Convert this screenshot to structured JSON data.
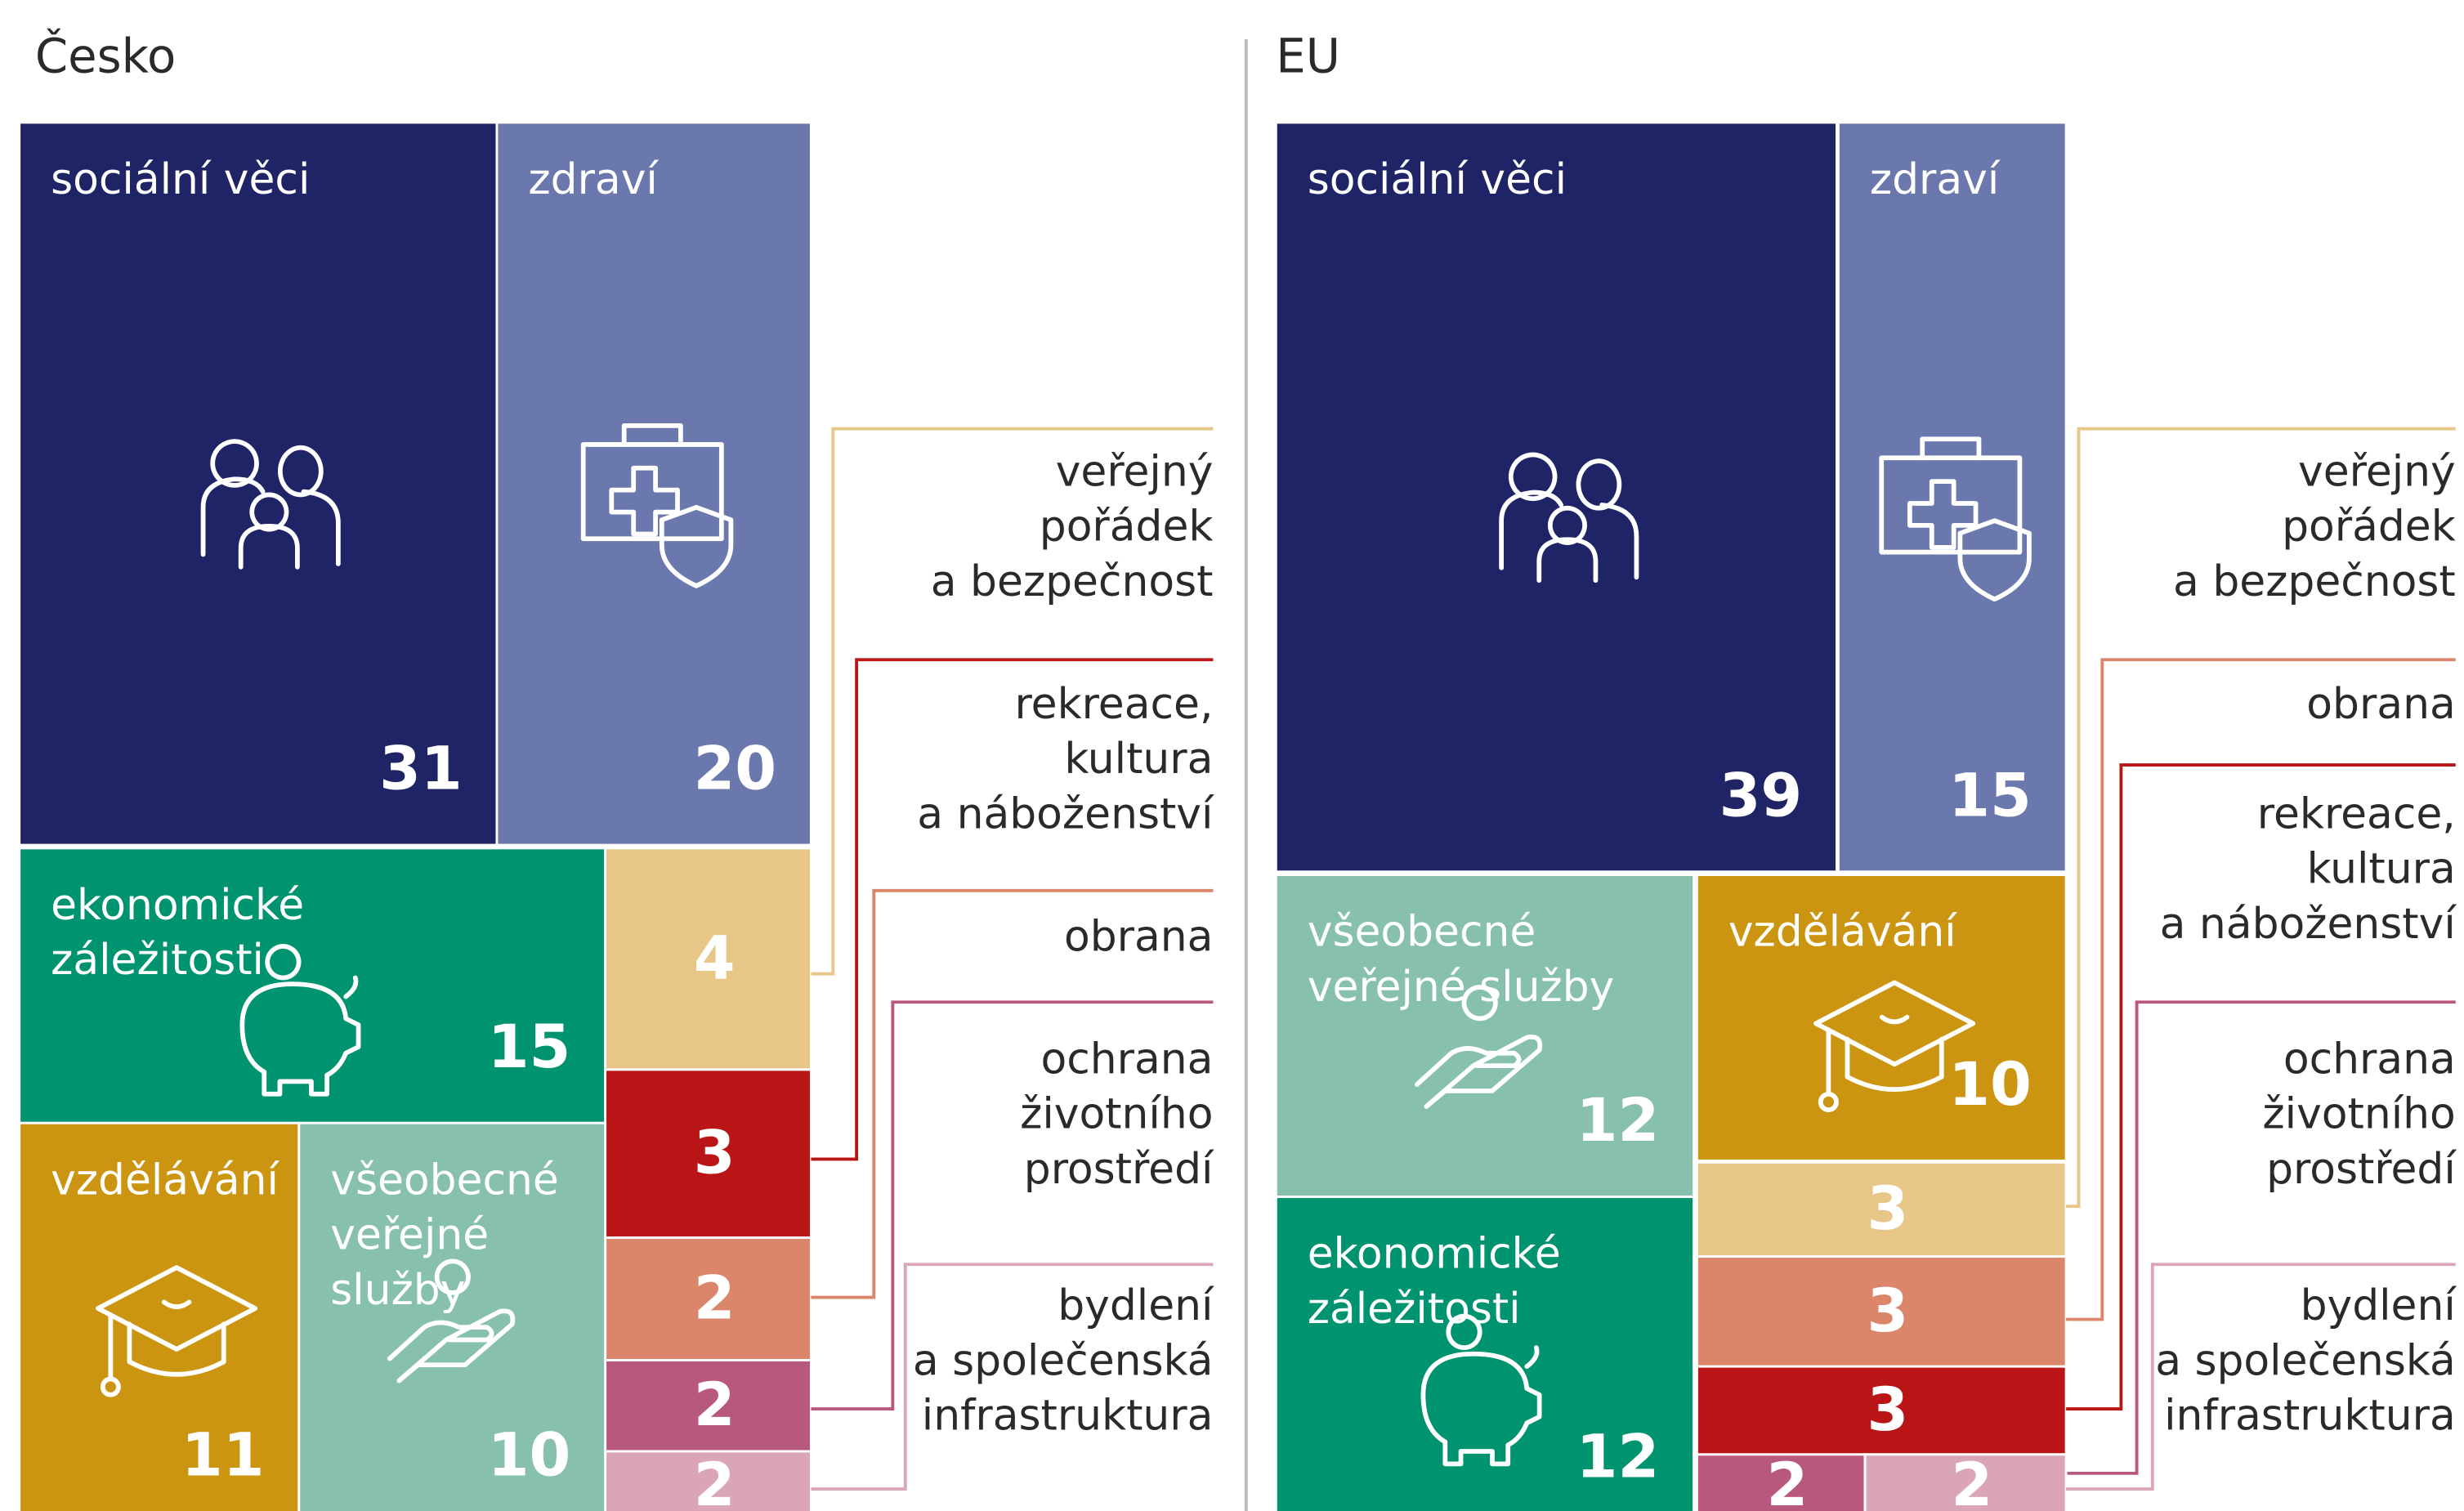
{
  "chart_data": [
    {
      "type": "treemap",
      "title": "Česko",
      "categories": [
        "sociální věci",
        "zdraví",
        "ekonomické\nzáležitosti",
        "veřejný\npořádek\na bezpečnost",
        "rekreace,\nkultura\na náboženství",
        "obrana",
        "ochrana\nživotního\nprostředí",
        "bydlení\na společenská\ninfrastruktura",
        "vzdělávání",
        "všeobecné\nveřejné\nslužby"
      ],
      "values": [
        31,
        20,
        15,
        4,
        3,
        2,
        2,
        2,
        11,
        10
      ],
      "colors": [
        "#1f2466",
        "#6b78ad",
        "#009370",
        "#e8c687",
        "#b91416",
        "#db866a",
        "#b9587e",
        "#daa5b8",
        "#cb9511",
        "#87c0ad"
      ]
    },
    {
      "type": "treemap",
      "title": "EU",
      "categories": [
        "sociální věci",
        "zdraví",
        "všeobecné\nveřejné služby",
        "vzdělávání",
        "ekonomické\nzáležitosti",
        "veřejný\npořádek\na bezpečnost",
        "obrana",
        "rekreace,\nkultura\na náboženství",
        "ochrana\nživotního\nprostředí",
        "bydlení\na společenská\ninfrastruktura"
      ],
      "values": [
        39,
        15,
        12,
        10,
        12,
        3,
        3,
        3,
        2,
        2
      ],
      "colors": [
        "#1f2466",
        "#6b78ad",
        "#87c0ad",
        "#cb9511",
        "#009370",
        "#e8c687",
        "#db866a",
        "#b91416",
        "#b9587e",
        "#daa5b8"
      ]
    }
  ]
}
